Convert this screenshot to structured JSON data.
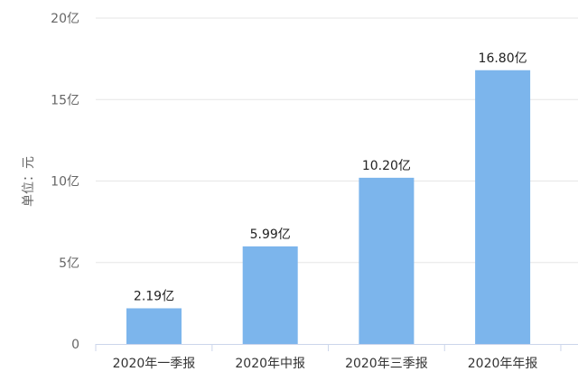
{
  "chart_data": {
    "type": "bar",
    "ylabel": "单位：元",
    "categories": [
      "2020年一季报",
      "2020年中报",
      "2020年三季报",
      "2020年年报"
    ],
    "values": [
      2.19,
      5.99,
      10.2,
      16.8
    ],
    "data_labels": [
      "2.19亿",
      "5.99亿",
      "10.20亿",
      "16.80亿"
    ],
    "ylim": [
      0,
      20
    ],
    "y_ticks": [
      {
        "value": 0,
        "label": "0"
      },
      {
        "value": 5,
        "label": "5亿"
      },
      {
        "value": 10,
        "label": "10亿"
      },
      {
        "value": 15,
        "label": "15亿"
      },
      {
        "value": 20,
        "label": "20亿"
      }
    ],
    "grid": true,
    "bar_color": "#7cb5ec",
    "grid_color": "#e6e6e6",
    "axis_color": "#ccd6eb"
  }
}
